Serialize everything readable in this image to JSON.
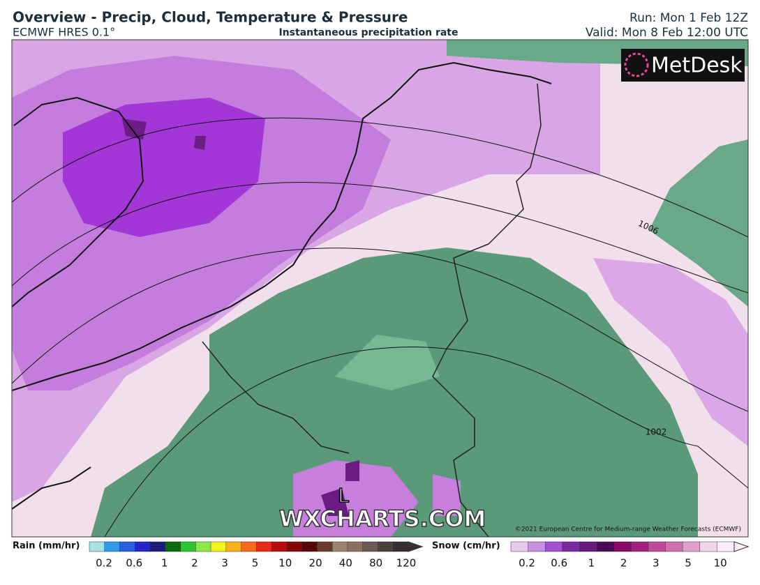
{
  "header": {
    "title": "Overview - Precip, Cloud, Temperature & Pressure",
    "model": "ECMWF HRES 0.1°",
    "subtitle": "Instantaneous precipitation rate",
    "run": "Run: Mon 1 Feb 12Z",
    "valid": "Valid: Mon 8 Feb 12:00 UTC"
  },
  "map": {
    "logo": "MetDesk",
    "isobars": [
      "1006",
      "1002"
    ],
    "low": "L",
    "watermark": "WXCHARTS.COM",
    "credit": "©2021 European Centre for Medium-range Weather Forecasts (ECMWF)"
  },
  "legend": {
    "rain": {
      "title": "Rain (mm/hr)",
      "labels": [
        0.2,
        0.6,
        1,
        2,
        3,
        5,
        10,
        20,
        40,
        80,
        120
      ],
      "colors": [
        "#a8e0ea",
        "#2f9be8",
        "#2b5fe0",
        "#2525c8",
        "#1a1a78",
        "#0a6a0a",
        "#2ec42e",
        "#8ae84a",
        "#f4f41c",
        "#f8b21c",
        "#f86a1c",
        "#e82a1c",
        "#b80c0c",
        "#8a0606",
        "#5a0606",
        "#6a3a2a",
        "#a0826a",
        "#8a7060",
        "#6a5a50",
        "#4a4040",
        "#353030"
      ]
    },
    "snow": {
      "title": "Snow (cm/hr)",
      "labels": [
        0.2,
        0.6,
        1,
        2,
        3,
        5,
        10
      ],
      "colors": [
        "#e8c8ec",
        "#c890e0",
        "#a050d0",
        "#7a2aa0",
        "#6a1a80",
        "#4a0a5a",
        "#8a0a6a",
        "#a8207e",
        "#c04a9a",
        "#d070b0",
        "#e2a0cc",
        "#f2d4e6",
        "#fbeef6"
      ]
    }
  }
}
